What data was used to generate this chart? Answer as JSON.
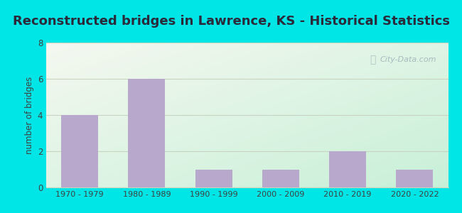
{
  "title": "Reconstructed bridges in Lawrence, KS - Historical Statistics",
  "categories": [
    "1970 - 1979",
    "1980 - 1989",
    "1990 - 1999",
    "2000 - 2009",
    "2010 - 2019",
    "2020 - 2022"
  ],
  "values": [
    4,
    6,
    1,
    1,
    2,
    1
  ],
  "bar_color": "#b8a8cc",
  "ylabel": "number of bridges",
  "ylim": [
    0,
    8
  ],
  "yticks": [
    0,
    2,
    4,
    6,
    8
  ],
  "background_outer": "#00e5e5",
  "background_top_left": "#f5f8f0",
  "background_bottom_right": "#c8f0d8",
  "grid_color": "#c8d4c0",
  "title_fontsize": 13,
  "title_color": "#2a2a3a",
  "tick_color": "#404040",
  "watermark": "City-Data.com",
  "bar_width": 0.55
}
